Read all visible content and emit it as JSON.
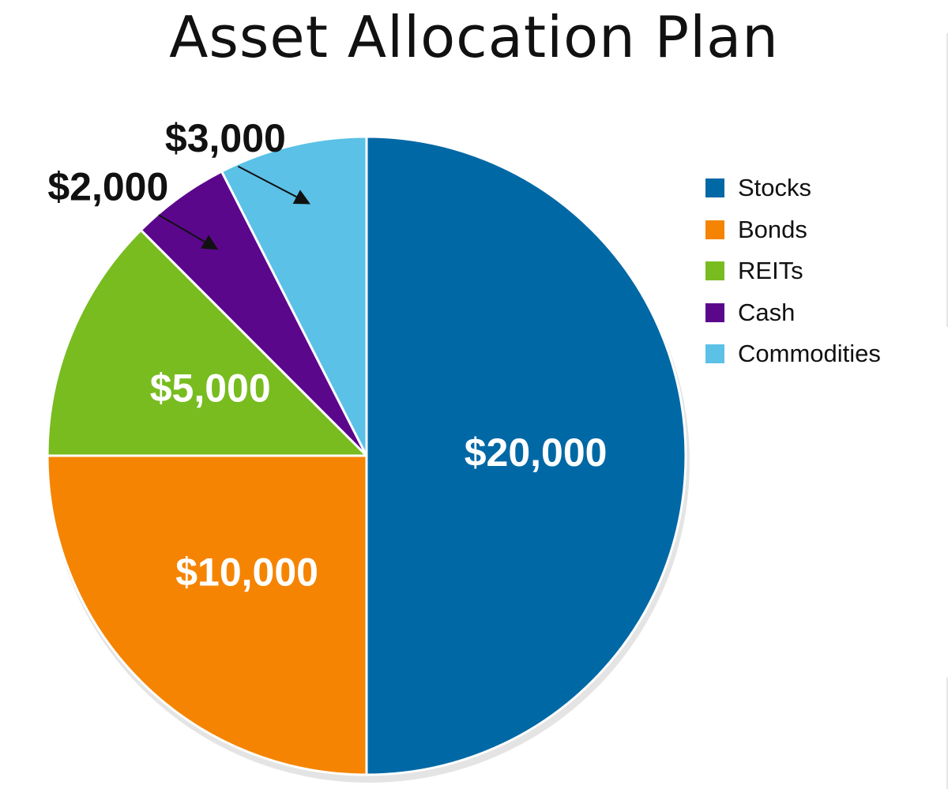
{
  "chart_data": {
    "type": "pie",
    "title": "Asset Allocation Plan",
    "categories": [
      "Stocks",
      "Bonds",
      "REITs",
      "Cash",
      "Commodities"
    ],
    "values": [
      20000,
      10000,
      5000,
      2000,
      3000
    ],
    "data_labels": [
      "$20,000",
      "$10,000",
      "$5,000",
      "$2,000",
      "$3,000"
    ],
    "colors": [
      "#0068a5",
      "#f58402",
      "#78bc20",
      "#5b078c",
      "#5bc1e6"
    ],
    "label_colors": [
      "#ffffff",
      "#ffffff",
      "#ffffff",
      "#111111",
      "#111111"
    ],
    "start_angle": "12 o'clock, clockwise",
    "legend_position": "right"
  },
  "legend": {
    "items": [
      {
        "label": "Stocks",
        "color": "#0068a5"
      },
      {
        "label": "Bonds",
        "color": "#f58402"
      },
      {
        "label": "REITs",
        "color": "#78bc20"
      },
      {
        "label": "Cash",
        "color": "#5b078c"
      },
      {
        "label": "Commodities",
        "color": "#5bc1e6"
      }
    ]
  }
}
